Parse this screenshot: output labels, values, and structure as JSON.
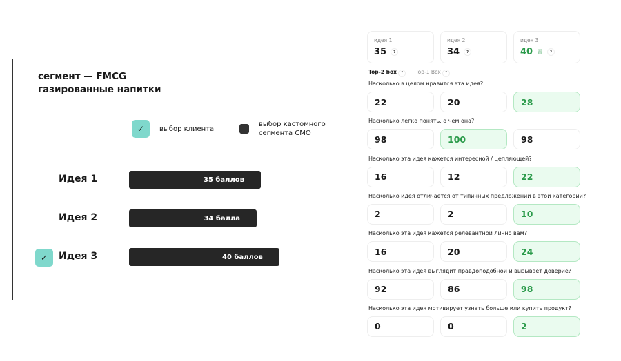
{
  "panel": {
    "title_line1": "сегмент — FMCG",
    "title_line2": "газированные напитки",
    "legend": [
      {
        "label": "выбор клиента",
        "icon": "check-icon"
      },
      {
        "label": "выбор кастомного сегмента СМО",
        "icon": "square-icon"
      }
    ],
    "ideas": [
      {
        "name": "Идея 1",
        "score": 35,
        "label": "35 баллов",
        "selected": false
      },
      {
        "name": "Идея 2",
        "score": 34,
        "label": "34 балла",
        "selected": false
      },
      {
        "name": "Идея 3",
        "score": 40,
        "label": "40 баллов",
        "selected": true
      }
    ],
    "check_symbol": "✓"
  },
  "summary": [
    {
      "label": "идея 1",
      "value": "35"
    },
    {
      "label": "идея 2",
      "value": "34"
    },
    {
      "label": "идея 3",
      "value": "40",
      "winner": true,
      "icon": "crown-icon"
    }
  ],
  "help_symbol": "?",
  "tabs": [
    {
      "label": "Top-2 box",
      "active": true
    },
    {
      "label": "Top-1 Box",
      "active": false
    }
  ],
  "questions": [
    {
      "text": "Насколько в целом нравится эта идея?",
      "values": [
        "22",
        "20",
        "28"
      ],
      "best": 2
    },
    {
      "text": "Насколько легко понять, о чем она?",
      "values": [
        "98",
        "100",
        "98"
      ],
      "best": 1
    },
    {
      "text": "Насколько эта идея кажется интересной / цепляющей?",
      "values": [
        "16",
        "12",
        "22"
      ],
      "best": 2
    },
    {
      "text": "Насколько идея отличается от типичных предложений в этой категории?",
      "values": [
        "2",
        "2",
        "10"
      ],
      "best": 2
    },
    {
      "text": "Насколько эта идея кажется релевантной лично вам?",
      "values": [
        "16",
        "20",
        "24"
      ],
      "best": 2
    },
    {
      "text": "Насколько эта идея выглядит правдоподобной и вызывает доверие?",
      "values": [
        "92",
        "86",
        "98"
      ],
      "best": 2
    },
    {
      "text": "Насколько эта идея мотивирует узнать больше или купить продукт?",
      "values": [
        "0",
        "0",
        "2"
      ],
      "best": 2
    }
  ],
  "colors": {
    "accent_green": "#2a9a4a",
    "teal": "#7fd8cc",
    "bar": "#262626"
  }
}
